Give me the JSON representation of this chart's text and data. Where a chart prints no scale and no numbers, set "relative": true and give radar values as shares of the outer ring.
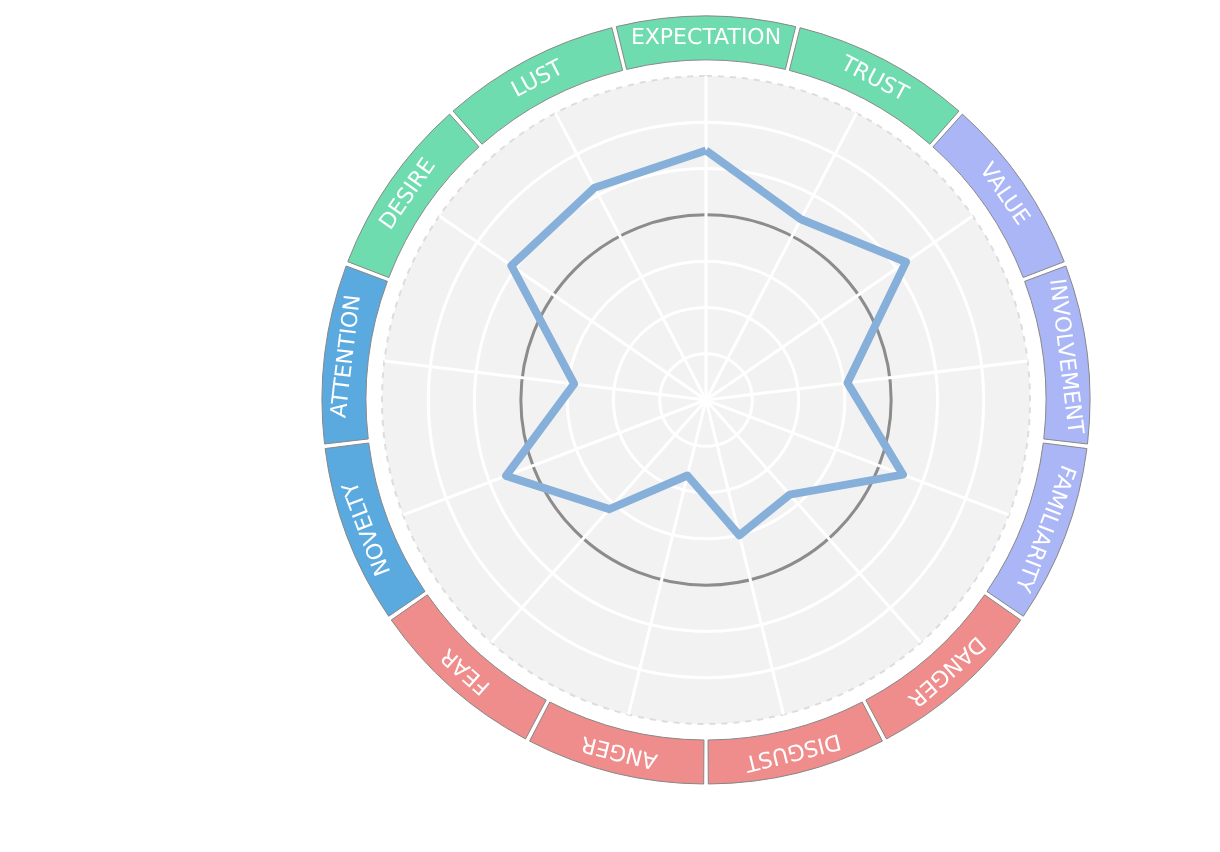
{
  "chart_data": {
    "type": "radar",
    "relative": true,
    "grid": true,
    "categories": [
      "EXPECTATION",
      "TRUST",
      "VALUE",
      "INVOLVEMENT",
      "FAMILIARITY",
      "DANGER",
      "DISGUST",
      "ANGER",
      "FEAR",
      "NOVELTY",
      "ATTENTION",
      "DESIRE",
      "LUST"
    ],
    "colors": [
      "#6edcae",
      "#6edcae",
      "#aab6f6",
      "#aab6f6",
      "#aab6f6",
      "#ef8c8c",
      "#ef8c8c",
      "#ef8c8c",
      "#ef8c8c",
      "#5aaae0",
      "#5aaae0",
      "#6edcae",
      "#6edcae"
    ],
    "series": [
      {
        "color": "#86afda",
        "values": [
          0.77,
          0.63,
          0.75,
          0.44,
          0.65,
          0.39,
          0.43,
          0.24,
          0.45,
          0.66,
          0.41,
          0.73,
          0.74
        ]
      }
    ]
  }
}
